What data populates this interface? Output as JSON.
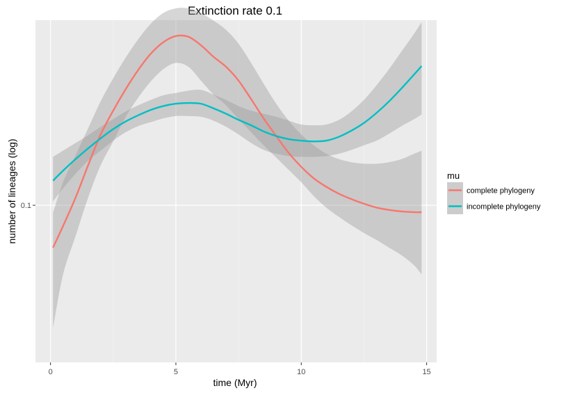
{
  "chart_data": {
    "type": "line",
    "title": "Extinction rate 0.1",
    "xlabel": "time (Myr)",
    "ylabel": "number of lineages (log)",
    "xlim": [
      -0.6,
      15.4
    ],
    "ylim": [
      -0.1042,
      0.3406
    ],
    "y_scale": "log10-mapped",
    "x_ticks": [
      {
        "value": 0,
        "label": "0"
      },
      {
        "value": 5,
        "label": "5"
      },
      {
        "value": 10,
        "label": "10"
      },
      {
        "value": 15,
        "label": "15"
      }
    ],
    "y_ticks": [
      {
        "value": 0.1,
        "label": "0.1"
      }
    ],
    "grid": true,
    "legend": {
      "title": "mu",
      "position": "right",
      "entries": [
        {
          "label": "complete phylogeny",
          "color": "#F8766D"
        },
        {
          "label": "incomplete phylogeny",
          "color": "#00BFC4"
        }
      ]
    },
    "series": [
      {
        "name": "complete phylogeny",
        "color": "#F8766D",
        "x": [
          0.1,
          0.5,
          1,
          1.5,
          2,
          2.5,
          3,
          3.5,
          4,
          4.5,
          5,
          5.5,
          6,
          6.5,
          7,
          7.5,
          8,
          8.5,
          9,
          9.5,
          10,
          10.5,
          11,
          11.5,
          12,
          12.5,
          13,
          13.5,
          14,
          14.5,
          14.8
        ],
        "y": [
          0.045,
          0.073,
          0.11,
          0.152,
          0.192,
          0.223,
          0.251,
          0.276,
          0.297,
          0.312,
          0.32,
          0.319,
          0.308,
          0.293,
          0.28,
          0.262,
          0.238,
          0.213,
          0.19,
          0.168,
          0.15,
          0.135,
          0.124,
          0.115,
          0.108,
          0.102,
          0.097,
          0.094,
          0.092,
          0.091,
          0.091
        ],
        "ci_low": [
          -0.06,
          0.01,
          0.06,
          0.11,
          0.152,
          0.183,
          0.215,
          0.24,
          0.261,
          0.277,
          0.285,
          0.28,
          0.262,
          0.244,
          0.23,
          0.212,
          0.195,
          0.178,
          0.162,
          0.146,
          0.13,
          0.112,
          0.097,
          0.085,
          0.074,
          0.064,
          0.055,
          0.045,
          0.035,
          0.022,
          0.01
        ],
        "ci_high": [
          0.09,
          0.13,
          0.165,
          0.2,
          0.235,
          0.265,
          0.292,
          0.316,
          0.336,
          0.35,
          0.356,
          0.356,
          0.35,
          0.34,
          0.328,
          0.31,
          0.285,
          0.258,
          0.232,
          0.21,
          0.192,
          0.178,
          0.167,
          0.16,
          0.156,
          0.154,
          0.154,
          0.156,
          0.16,
          0.167,
          0.171
        ]
      },
      {
        "name": "incomplete phylogeny",
        "color": "#00BFC4",
        "x": [
          0.1,
          0.5,
          1,
          1.5,
          2,
          2.5,
          3,
          3.5,
          4,
          4.5,
          5,
          5.5,
          6,
          6.5,
          7,
          7.5,
          8,
          8.5,
          9,
          9.5,
          10,
          10.5,
          11,
          11.5,
          12,
          12.5,
          13,
          13.5,
          14,
          14.5,
          14.8
        ],
        "y": [
          0.132,
          0.145,
          0.16,
          0.174,
          0.187,
          0.199,
          0.209,
          0.217,
          0.224,
          0.229,
          0.232,
          0.233,
          0.232,
          0.226,
          0.219,
          0.211,
          0.204,
          0.196,
          0.19,
          0.186,
          0.184,
          0.183,
          0.184,
          0.189,
          0.197,
          0.207,
          0.22,
          0.235,
          0.252,
          0.27,
          0.281
        ],
        "ci_low": [
          0.105,
          0.122,
          0.141,
          0.158,
          0.171,
          0.184,
          0.195,
          0.203,
          0.208,
          0.213,
          0.216,
          0.216,
          0.215,
          0.21,
          0.202,
          0.192,
          0.181,
          0.172,
          0.167,
          0.164,
          0.163,
          0.163,
          0.164,
          0.167,
          0.172,
          0.178,
          0.184,
          0.193,
          0.203,
          0.212,
          0.218
        ],
        "ci_high": [
          0.163,
          0.171,
          0.181,
          0.191,
          0.202,
          0.212,
          0.222,
          0.23,
          0.237,
          0.243,
          0.246,
          0.249,
          0.25,
          0.244,
          0.237,
          0.229,
          0.223,
          0.219,
          0.215,
          0.21,
          0.205,
          0.204,
          0.205,
          0.211,
          0.222,
          0.237,
          0.256,
          0.277,
          0.3,
          0.323,
          0.338
        ]
      }
    ]
  }
}
